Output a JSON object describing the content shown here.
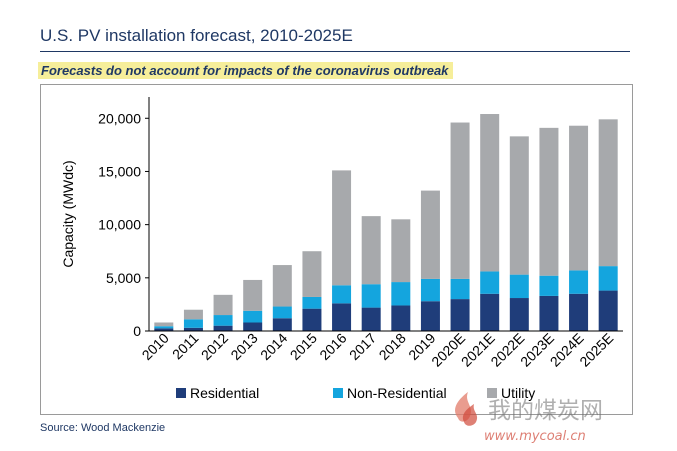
{
  "header": {
    "title": "U.S. PV installation forecast, 2010-2025E",
    "note": "Forecasts do not account for impacts of the coronavirus outbreak"
  },
  "footer": {
    "source": "Source: Wood Mackenzie"
  },
  "watermark": {
    "text_cn": "我的煤炭网",
    "url": "www.mycoal.cn"
  },
  "colors": {
    "residential": "#1f3d7a",
    "non_residential": "#14a5de",
    "utility": "#a7a9ac"
  },
  "chart_data": {
    "type": "bar",
    "stacked": true,
    "categories": [
      "2010",
      "2011",
      "2012",
      "2013",
      "2014",
      "2015",
      "2016",
      "2017",
      "2018",
      "2019",
      "2020E",
      "2021E",
      "2022E",
      "2023E",
      "2024E",
      "2025E"
    ],
    "series": [
      {
        "name": "Residential",
        "values": [
          250,
          300,
          500,
          800,
          1200,
          2100,
          2600,
          2200,
          2400,
          2800,
          3000,
          3500,
          3100,
          3300,
          3500,
          3800
        ]
      },
      {
        "name": "Non-Residential",
        "values": [
          200,
          800,
          1000,
          1100,
          1100,
          1100,
          1700,
          2200,
          2200,
          2100,
          1900,
          2100,
          2200,
          1900,
          2200,
          2300
        ]
      },
      {
        "name": "Utility",
        "values": [
          350,
          900,
          1900,
          2900,
          3900,
          4300,
          10800,
          6400,
          5900,
          8300,
          14700,
          14800,
          13000,
          13900,
          13600,
          13800
        ]
      }
    ],
    "ylabel": "Capacity (MWdc)",
    "ylim": [
      0,
      22000
    ],
    "yticks": [
      0,
      5000,
      10000,
      15000,
      20000
    ],
    "ytick_labels": [
      "0",
      "5,000",
      "10,000",
      "15,000",
      "20,000"
    ],
    "grid": false,
    "legend_position": "bottom"
  }
}
